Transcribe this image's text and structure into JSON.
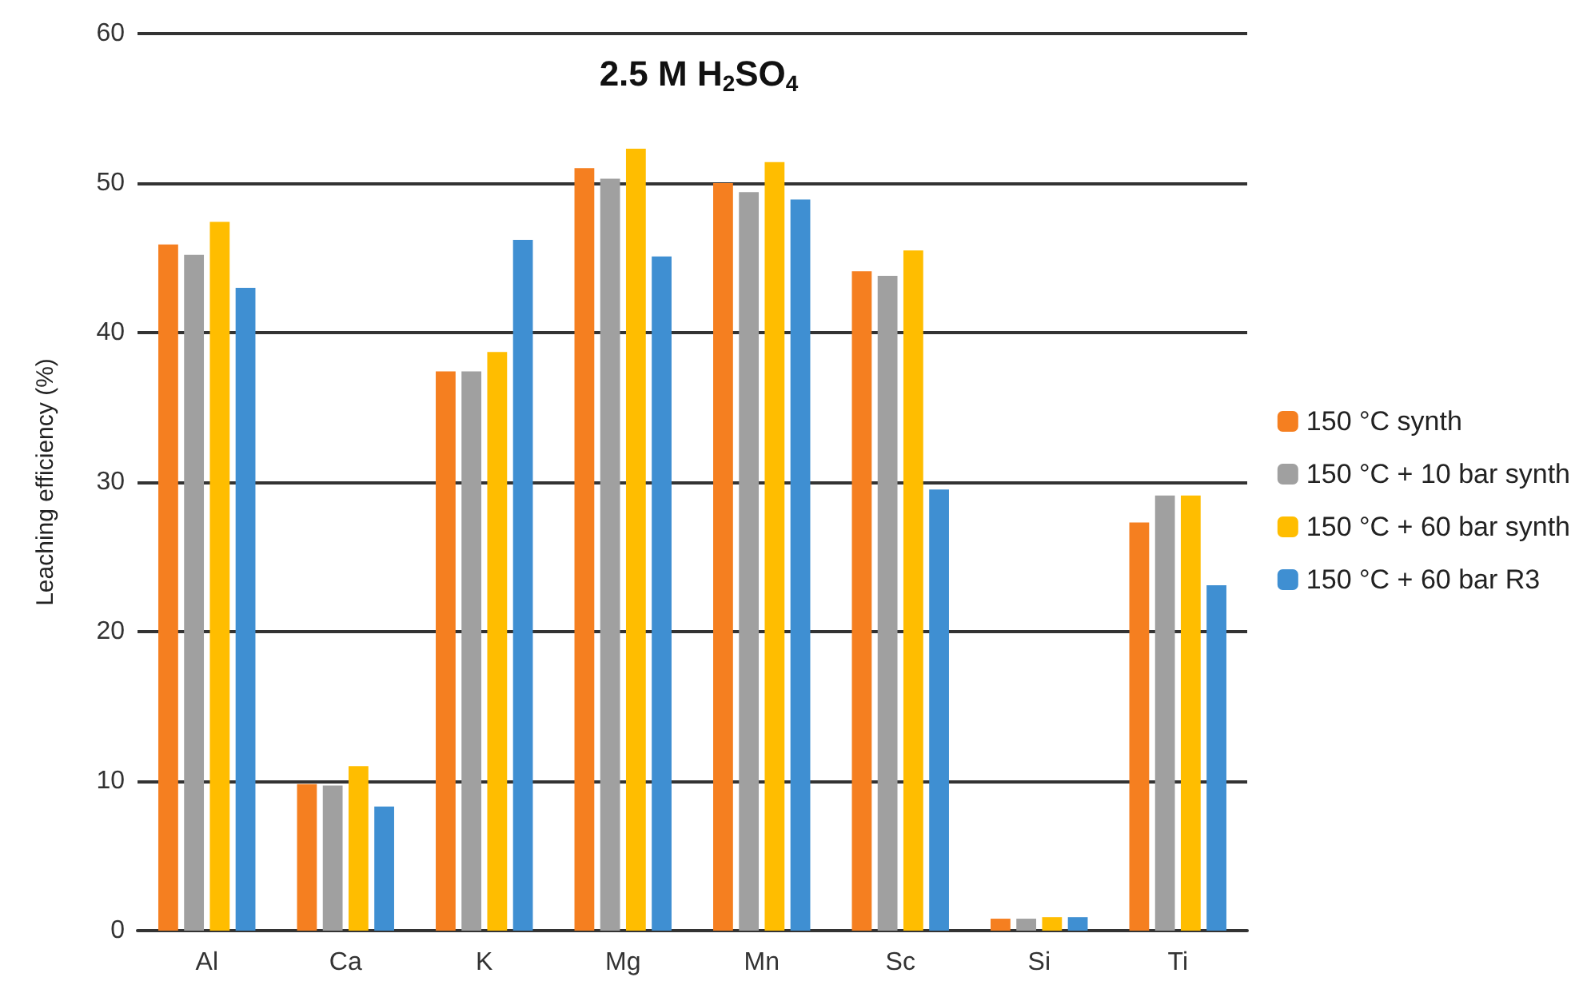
{
  "chart_data": {
    "type": "bar",
    "title": "2.5 M H$_{2}$SO$_{4}$",
    "ylabel": "Leaching efficiency (%)",
    "categories": [
      "Al",
      "Ca",
      "K",
      "Mg",
      "Mn",
      "Sc",
      "Si",
      "Ti"
    ],
    "series": [
      {
        "name": "150 °C synth",
        "color": "#f57f20",
        "values": [
          45.9,
          9.8,
          37.4,
          51.0,
          50.0,
          44.1,
          0.8,
          27.3
        ]
      },
      {
        "name": "150 °C + 10 bar synth",
        "color": "#a0a0a0",
        "values": [
          45.2,
          9.7,
          37.4,
          50.3,
          49.4,
          43.8,
          0.8,
          29.1
        ]
      },
      {
        "name": "150 °C + 60 bar synth",
        "color": "#ffbd00",
        "values": [
          47.4,
          11.0,
          38.7,
          52.3,
          51.4,
          45.5,
          0.9,
          29.1
        ]
      },
      {
        "name": "150 °C + 60 bar R3",
        "color": "#3f8fd2",
        "values": [
          43.0,
          8.3,
          46.2,
          45.1,
          48.9,
          29.5,
          0.9,
          23.1
        ]
      }
    ],
    "ylim": [
      0,
      60
    ],
    "yticks": [
      0,
      10,
      20,
      30,
      40,
      50,
      60
    ],
    "grid": "y",
    "legend": "right"
  }
}
